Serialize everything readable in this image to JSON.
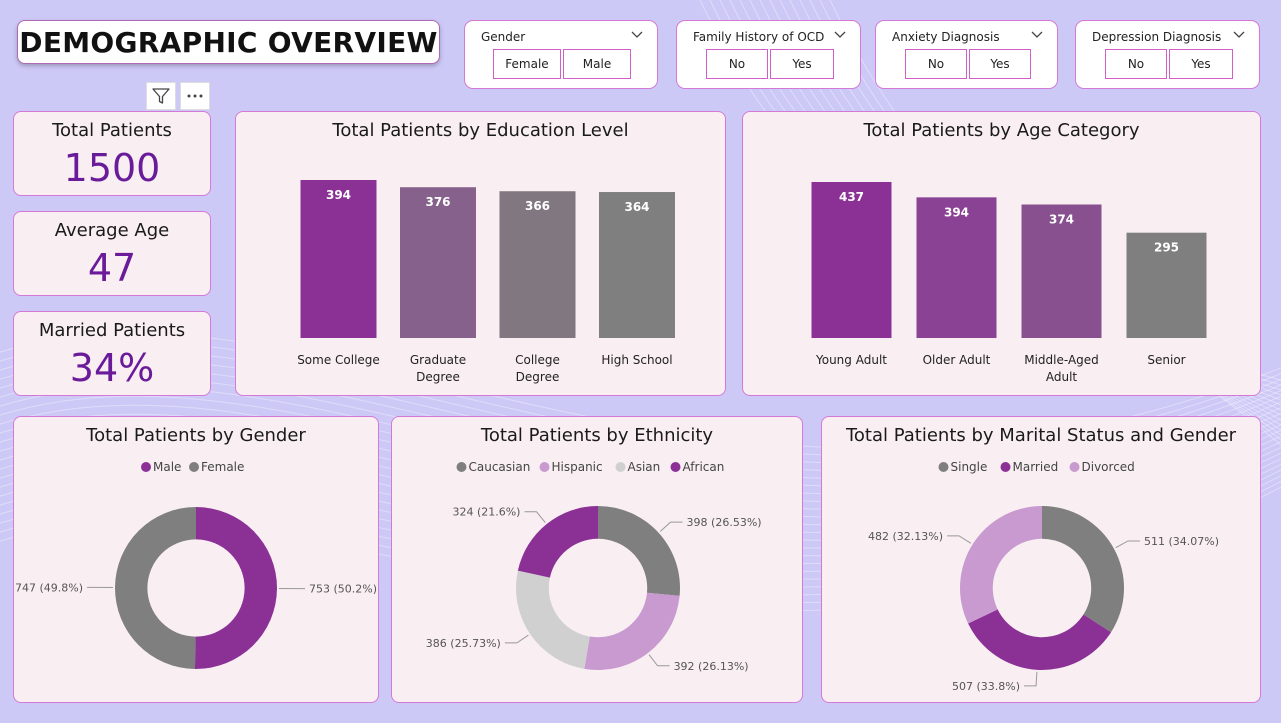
{
  "title": "DEMOGRAPHIC OVERVIEW",
  "slicers": [
    {
      "title": "Gender",
      "options": [
        "Female",
        "Male"
      ]
    },
    {
      "title": "Family History of OCD",
      "options": [
        "No",
        "Yes"
      ]
    },
    {
      "title": "Anxiety Diagnosis",
      "options": [
        "No",
        "Yes"
      ]
    },
    {
      "title": "Depression Diagnosis",
      "options": [
        "No",
        "Yes"
      ]
    }
  ],
  "kpis": [
    {
      "label": "Total Patients",
      "value": "1500"
    },
    {
      "label": "Average Age",
      "value": "47"
    },
    {
      "label": "Married Patients",
      "value": "34%"
    }
  ],
  "colors": {
    "purple": "#8b3196",
    "light_purple": "#c99ad0",
    "gray": "#7f7f7f",
    "light_gray": "#d0d0d0",
    "accent": "#6a1b9a"
  },
  "chart_data": [
    {
      "type": "bar",
      "title": "Total Patients by Education Level",
      "categories": [
        "Some College",
        "Graduate Degree",
        "College Degree",
        "High School"
      ],
      "category_lines": [
        [
          "Some College"
        ],
        [
          "Graduate",
          "Degree"
        ],
        [
          "College",
          "Degree"
        ],
        [
          "High School"
        ]
      ],
      "values": [
        394,
        376,
        366,
        364
      ],
      "colors": [
        "#8b3196",
        "#86618b",
        "#807781",
        "#7f7f7f"
      ],
      "ylim": [
        0,
        394
      ]
    },
    {
      "type": "bar",
      "title": "Total Patients by Age Category",
      "categories": [
        "Young Adult",
        "Older Adult",
        "Middle-Aged Adult",
        "Senior"
      ],
      "category_lines": [
        [
          "Young Adult"
        ],
        [
          "Older Adult"
        ],
        [
          "Middle-Aged",
          "Adult"
        ],
        [
          "Senior"
        ]
      ],
      "values": [
        437,
        394,
        374,
        295
      ],
      "colors": [
        "#8b3196",
        "#8a4394",
        "#88508f",
        "#7f7f7f"
      ],
      "ylim": [
        0,
        437
      ]
    },
    {
      "type": "pie",
      "title": "Total Patients by Gender",
      "legend": [
        {
          "name": "Male",
          "color": "#8b3196"
        },
        {
          "name": "Female",
          "color": "#7f7f7f"
        }
      ],
      "slices": [
        {
          "name": "Male",
          "value": 753,
          "label": "753 (50.2%)",
          "color": "#8b3196"
        },
        {
          "name": "Female",
          "value": 747,
          "label": "747 (49.8%)",
          "color": "#7f7f7f"
        }
      ]
    },
    {
      "type": "pie",
      "title": "Total Patients by Ethnicity",
      "legend": [
        {
          "name": "Caucasian",
          "color": "#7f7f7f"
        },
        {
          "name": "Hispanic",
          "color": "#c99ad0"
        },
        {
          "name": "Asian",
          "color": "#d0d0d0"
        },
        {
          "name": "African",
          "color": "#8b3196"
        }
      ],
      "slices": [
        {
          "name": "Caucasian",
          "value": 398,
          "label": "398 (26.53%)",
          "color": "#7f7f7f"
        },
        {
          "name": "Hispanic",
          "value": 392,
          "label": "392 (26.13%)",
          "color": "#c99ad0"
        },
        {
          "name": "Asian",
          "value": 386,
          "label": "386 (25.73%)",
          "color": "#d0d0d0"
        },
        {
          "name": "African",
          "value": 324,
          "label": "324 (21.6%)",
          "color": "#8b3196"
        }
      ]
    },
    {
      "type": "pie",
      "title": "Total Patients by Marital Status and Gender",
      "legend": [
        {
          "name": "Single",
          "color": "#7f7f7f"
        },
        {
          "name": "Married",
          "color": "#8b3196"
        },
        {
          "name": "Divorced",
          "color": "#c99ad0"
        }
      ],
      "slices": [
        {
          "name": "Single",
          "value": 511,
          "label": "511 (34.07%)",
          "color": "#7f7f7f"
        },
        {
          "name": "Married",
          "value": 507,
          "label": "507 (33.8%)",
          "color": "#8b3196"
        },
        {
          "name": "Divorced",
          "value": 482,
          "label": "482 (32.13%)",
          "color": "#c99ad0"
        }
      ]
    }
  ]
}
